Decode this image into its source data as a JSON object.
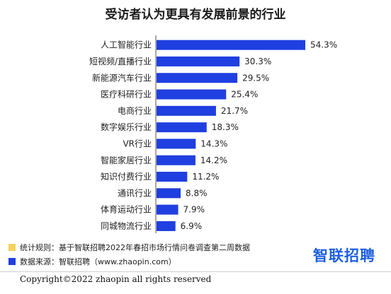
{
  "chart_data": {
    "type": "bar",
    "orientation": "horizontal",
    "title": "受访者认为更具有发展前景的行业",
    "categories": [
      "人工智能行业",
      "短视频/直播行业",
      "新能源汽车行业",
      "医疗科研行业",
      "电商行业",
      "数字娱乐行业",
      "VR行业",
      "智能家居行业",
      "知识付费行业",
      "通讯行业",
      "体育运动行业",
      "同城物流行业"
    ],
    "values": [
      54.3,
      30.3,
      29.5,
      25.4,
      21.7,
      18.3,
      14.3,
      14.2,
      11.2,
      8.8,
      7.9,
      6.9
    ],
    "value_labels": [
      "54.3%",
      "30.3%",
      "29.5%",
      "25.4%",
      "21.7%",
      "18.3%",
      "14.3%",
      "14.2%",
      "11.2%",
      "8.8%",
      "7.9%",
      "6.9%"
    ],
    "xlim": [
      0,
      54.3
    ],
    "bar_color": "#1f3fe0",
    "grid": false
  },
  "notes": [
    {
      "text": "统计规则：基于智联招聘2022年春招市场行情问卷调查第二周数据",
      "color": "#f4d35e"
    },
    {
      "text": "数据来源：智联招聘（www.zhaopin.com）",
      "color": "#1f3fe0"
    }
  ],
  "logo": "智联招聘",
  "copyright": "Copyright©2022 zhaopin all rights reserved"
}
